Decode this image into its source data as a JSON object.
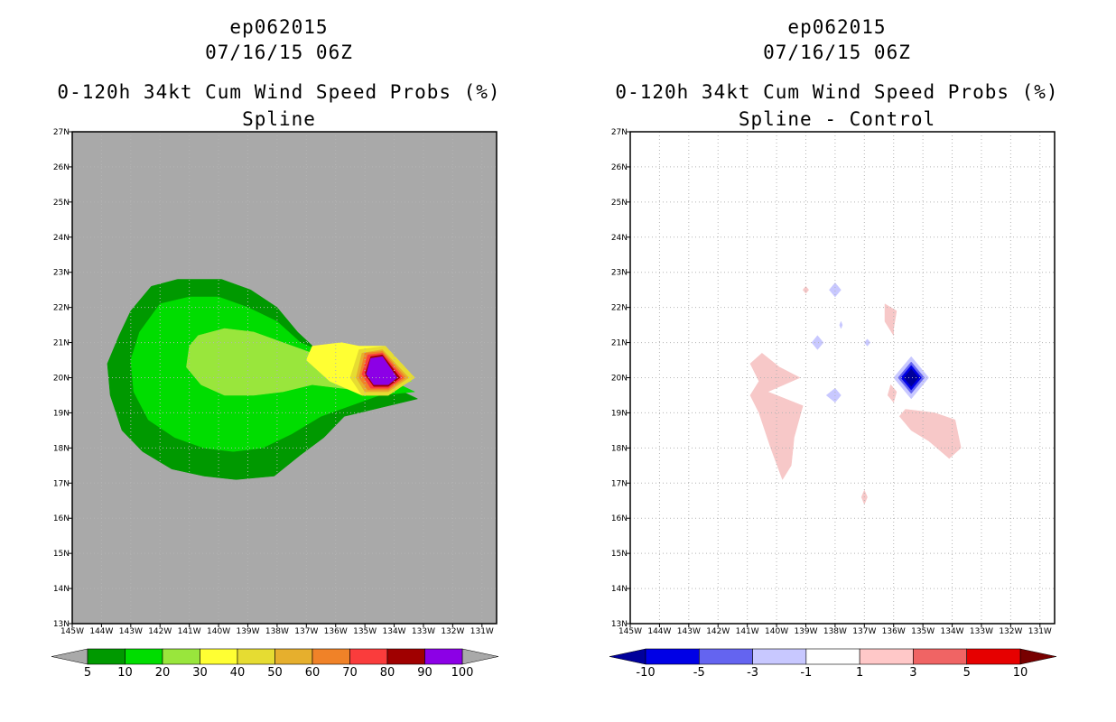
{
  "chart_data": [
    {
      "type": "heatmap",
      "storm_id": "ep062015",
      "datetime": "07/16/15 06Z",
      "title": "0-120h 34kt Cum Wind Speed Probs (%)",
      "subtitle": "Spline",
      "xlim_lon": [
        -145,
        -130.5
      ],
      "ylim_lat": [
        13,
        27
      ],
      "x_tick_labels": [
        "145W",
        "144W",
        "143W",
        "142W",
        "141W",
        "140W",
        "139W",
        "138W",
        "137W",
        "136W",
        "135W",
        "134W",
        "133W",
        "132W",
        "131W"
      ],
      "y_tick_labels": [
        "13N",
        "14N",
        "15N",
        "16N",
        "17N",
        "18N",
        "19N",
        "20N",
        "21N",
        "22N",
        "23N",
        "24N",
        "25N",
        "26N",
        "27N"
      ],
      "grid": true,
      "background_color": "#a9a9a9",
      "colorbar": {
        "labels": [
          "5",
          "10",
          "20",
          "30",
          "40",
          "50",
          "60",
          "70",
          "80",
          "90",
          "100"
        ],
        "colors": [
          "#009900",
          "#00dd00",
          "#99e63c",
          "#ffff33",
          "#e6dc32",
          "#e6af2d",
          "#f08228",
          "#fa3c3c",
          "#a00000",
          "#8c00e6"
        ],
        "end_colors": [
          "#a9a9a9",
          "#a9a9a9"
        ]
      },
      "contours": [
        {
          "level": 5,
          "color": "#009900",
          "polygon": [
            [
              -142.3,
              22.6
            ],
            [
              -141.4,
              22.8
            ],
            [
              -139.9,
              22.8
            ],
            [
              -138.9,
              22.5
            ],
            [
              -138.0,
              22.0
            ],
            [
              -137.3,
              21.3
            ],
            [
              -136.4,
              20.6
            ],
            [
              -135.2,
              20.2
            ],
            [
              -133.2,
              19.4
            ],
            [
              -135.7,
              18.9
            ],
            [
              -136.4,
              18.3
            ],
            [
              -137.2,
              17.8
            ],
            [
              -138.1,
              17.2
            ],
            [
              -139.4,
              17.1
            ],
            [
              -140.5,
              17.2
            ],
            [
              -141.6,
              17.4
            ],
            [
              -142.6,
              17.9
            ],
            [
              -143.3,
              18.5
            ],
            [
              -143.7,
              19.5
            ],
            [
              -143.8,
              20.4
            ],
            [
              -143.4,
              21.2
            ],
            [
              -143.0,
              21.9
            ]
          ]
        },
        {
          "level": 10,
          "color": "#00dd00",
          "polygon": [
            [
              -142.0,
              22.1
            ],
            [
              -141.0,
              22.3
            ],
            [
              -140.0,
              22.3
            ],
            [
              -139.0,
              22.0
            ],
            [
              -138.0,
              21.6
            ],
            [
              -137.2,
              21.0
            ],
            [
              -135.8,
              20.5
            ],
            [
              -134.8,
              20.2
            ],
            [
              -133.3,
              19.6
            ],
            [
              -134.5,
              19.5
            ],
            [
              -135.5,
              19.2
            ],
            [
              -136.5,
              18.9
            ],
            [
              -137.5,
              18.4
            ],
            [
              -138.5,
              18.0
            ],
            [
              -139.5,
              17.9
            ],
            [
              -140.5,
              18.0
            ],
            [
              -141.5,
              18.3
            ],
            [
              -142.4,
              18.8
            ],
            [
              -142.9,
              19.6
            ],
            [
              -143.0,
              20.5
            ],
            [
              -142.7,
              21.3
            ]
          ]
        },
        {
          "level": 20,
          "color": "#99e63c",
          "polygon": [
            [
              -140.7,
              21.2
            ],
            [
              -139.8,
              21.4
            ],
            [
              -138.8,
              21.3
            ],
            [
              -137.8,
              21.0
            ],
            [
              -136.8,
              20.7
            ],
            [
              -135.7,
              20.4
            ],
            [
              -134.7,
              20.2
            ],
            [
              -133.4,
              19.9
            ],
            [
              -134.8,
              19.6
            ],
            [
              -135.8,
              19.7
            ],
            [
              -136.8,
              19.8
            ],
            [
              -137.8,
              19.6
            ],
            [
              -138.8,
              19.5
            ],
            [
              -139.8,
              19.5
            ],
            [
              -140.6,
              19.8
            ],
            [
              -141.1,
              20.3
            ],
            [
              -141.0,
              20.9
            ]
          ]
        },
        {
          "level": 30,
          "color": "#ffff33",
          "polygon": [
            [
              -136.8,
              20.9
            ],
            [
              -135.8,
              21.0
            ],
            [
              -135.2,
              20.9
            ],
            [
              -134.3,
              20.9
            ],
            [
              -133.3,
              20.0
            ],
            [
              -134.2,
              19.5
            ],
            [
              -135.1,
              19.5
            ],
            [
              -136.2,
              19.9
            ],
            [
              -137.0,
              20.5
            ]
          ]
        },
        {
          "level": 40,
          "color": "#e6dc32",
          "polygon": [
            [
              -135.2,
              20.8
            ],
            [
              -134.3,
              20.9
            ],
            [
              -133.3,
              20.0
            ],
            [
              -134.2,
              19.5
            ],
            [
              -135.1,
              19.5
            ],
            [
              -135.5,
              20.0
            ]
          ]
        },
        {
          "level": 50,
          "color": "#e6af2d",
          "polygon": [
            [
              -135.1,
              20.7
            ],
            [
              -134.4,
              20.8
            ],
            [
              -133.5,
              20.0
            ],
            [
              -134.2,
              19.6
            ],
            [
              -135.0,
              19.6
            ],
            [
              -135.3,
              20.0
            ]
          ]
        },
        {
          "level": 60,
          "color": "#f08228",
          "polygon": [
            [
              -135.0,
              20.7
            ],
            [
              -134.4,
              20.75
            ],
            [
              -133.6,
              20.0
            ],
            [
              -134.2,
              19.65
            ],
            [
              -134.9,
              19.65
            ],
            [
              -135.2,
              20.0
            ]
          ]
        },
        {
          "level": 70,
          "color": "#fa3c3c",
          "polygon": [
            [
              -134.9,
              20.65
            ],
            [
              -134.4,
              20.7
            ],
            [
              -133.7,
              20.0
            ],
            [
              -134.2,
              19.7
            ],
            [
              -134.8,
              19.7
            ],
            [
              -135.1,
              20.1
            ]
          ]
        },
        {
          "level": 80,
          "color": "#a00000",
          "polygon": [
            [
              -134.8,
              20.6
            ],
            [
              -134.4,
              20.65
            ],
            [
              -133.8,
              20.0
            ],
            [
              -134.2,
              19.75
            ],
            [
              -134.7,
              19.75
            ],
            [
              -135.0,
              20.1
            ]
          ]
        },
        {
          "level": 90,
          "color": "#8c00e6",
          "polygon": [
            [
              -134.8,
              20.55
            ],
            [
              -134.4,
              20.6
            ],
            [
              -133.9,
              20.0
            ],
            [
              -134.2,
              19.8
            ],
            [
              -134.7,
              19.8
            ],
            [
              -134.95,
              20.1
            ]
          ]
        }
      ]
    },
    {
      "type": "heatmap",
      "storm_id": "ep062015",
      "datetime": "07/16/15 06Z",
      "title": "0-120h 34kt Cum Wind Speed Probs (%)",
      "subtitle": "Spline - Control",
      "xlim_lon": [
        -145,
        -130.5
      ],
      "ylim_lat": [
        13,
        27
      ],
      "x_tick_labels": [
        "145W",
        "144W",
        "143W",
        "142W",
        "141W",
        "140W",
        "139W",
        "138W",
        "137W",
        "136W",
        "135W",
        "134W",
        "133W",
        "132W",
        "131W"
      ],
      "y_tick_labels": [
        "13N",
        "14N",
        "15N",
        "16N",
        "17N",
        "18N",
        "19N",
        "20N",
        "21N",
        "22N",
        "23N",
        "24N",
        "25N",
        "26N",
        "27N"
      ],
      "grid": true,
      "background_color": "#ffffff",
      "colorbar": {
        "labels": [
          "-10",
          "-5",
          "-3",
          "-1",
          "1",
          "3",
          "5",
          "10"
        ],
        "colors": [
          "#0000e6",
          "#6464f0",
          "#c8c8ff",
          "#ffffff",
          "#ffc8c8",
          "#f06464",
          "#e60000"
        ],
        "end_colors": [
          "#00009b",
          "#780000"
        ]
      },
      "contours": [
        {
          "level": 1,
          "color": "#f7c8c8",
          "polygon": [
            [
              -140.5,
              20.7
            ],
            [
              -139.9,
              20.3
            ],
            [
              -139.2,
              20.0
            ],
            [
              -140.3,
              19.6
            ],
            [
              -139.1,
              19.2
            ],
            [
              -139.4,
              18.3
            ],
            [
              -139.5,
              17.5
            ],
            [
              -139.8,
              17.1
            ],
            [
              -140.2,
              18.0
            ],
            [
              -140.6,
              19.0
            ],
            [
              -140.9,
              19.5
            ],
            [
              -140.6,
              19.9
            ],
            [
              -140.9,
              20.4
            ]
          ]
        },
        {
          "level": 1,
          "color": "#f7c8c8",
          "polygon": [
            [
              -135.6,
              19.1
            ],
            [
              -134.6,
              19.0
            ],
            [
              -133.9,
              18.8
            ],
            [
              -133.7,
              18.0
            ],
            [
              -134.1,
              17.7
            ],
            [
              -134.8,
              18.2
            ],
            [
              -135.4,
              18.5
            ],
            [
              -135.8,
              18.9
            ]
          ]
        },
        {
          "level": 1,
          "color": "#f7c8c8",
          "polygon": [
            [
              -136.3,
              22.1
            ],
            [
              -135.9,
              21.9
            ],
            [
              -136.0,
              21.4
            ],
            [
              -136.0,
              21.2
            ],
            [
              -136.3,
              21.6
            ]
          ]
        },
        {
          "level": 1,
          "color": "#f7c8c8",
          "polygon": [
            [
              -136.1,
              19.8
            ],
            [
              -135.9,
              19.6
            ],
            [
              -136.0,
              19.3
            ],
            [
              -136.2,
              19.5
            ]
          ]
        },
        {
          "level": 1,
          "color": "#f7c8c8",
          "polygon": [
            [
              -137.0,
              16.8
            ],
            [
              -136.9,
              16.6
            ],
            [
              -137.0,
              16.4
            ],
            [
              -137.1,
              16.6
            ]
          ]
        },
        {
          "level": 1,
          "color": "#f7c8c8",
          "polygon": [
            [
              -139.0,
              22.6
            ],
            [
              -138.9,
              22.5
            ],
            [
              -139.0,
              22.4
            ],
            [
              -139.1,
              22.5
            ]
          ]
        },
        {
          "level": -1,
          "color": "#c8c8ff",
          "polygon": [
            [
              -138.0,
              22.7
            ],
            [
              -137.8,
              22.5
            ],
            [
              -138.0,
              22.3
            ],
            [
              -138.2,
              22.5
            ]
          ]
        },
        {
          "level": -1,
          "color": "#c8c8ff",
          "polygon": [
            [
              -138.6,
              21.2
            ],
            [
              -138.4,
              21.0
            ],
            [
              -138.6,
              20.8
            ],
            [
              -138.8,
              21.0
            ]
          ]
        },
        {
          "level": -1,
          "color": "#c8c8ff",
          "polygon": [
            [
              -138.0,
              19.7
            ],
            [
              -137.8,
              19.5
            ],
            [
              -138.0,
              19.3
            ],
            [
              -138.3,
              19.5
            ]
          ]
        },
        {
          "level": -1,
          "color": "#c8c8ff",
          "polygon": [
            [
              -137.8,
              21.6
            ],
            [
              -137.75,
              21.5
            ],
            [
              -137.8,
              21.4
            ],
            [
              -137.85,
              21.5
            ]
          ]
        },
        {
          "level": -1,
          "color": "#c8c8ff",
          "polygon": [
            [
              -136.9,
              21.1
            ],
            [
              -136.8,
              21.0
            ],
            [
              -136.9,
              20.9
            ],
            [
              -137.0,
              21.0
            ]
          ]
        },
        {
          "level": -1,
          "color": "#c8c8ff",
          "polygon": [
            [
              -135.4,
              20.6
            ],
            [
              -134.8,
              20.0
            ],
            [
              -135.4,
              19.4
            ],
            [
              -136.0,
              20.0
            ]
          ]
        },
        {
          "level": -3,
          "color": "#6464f0",
          "polygon": [
            [
              -135.4,
              20.45
            ],
            [
              -134.95,
              20.0
            ],
            [
              -135.4,
              19.55
            ],
            [
              -135.85,
              20.0
            ]
          ]
        },
        {
          "level": -5,
          "color": "#0000e6",
          "polygon": [
            [
              -135.4,
              20.35
            ],
            [
              -135.05,
              20.0
            ],
            [
              -135.4,
              19.65
            ],
            [
              -135.75,
              20.0
            ]
          ]
        },
        {
          "level": -10,
          "color": "#00009b",
          "polygon": [
            [
              -135.4,
              20.25
            ],
            [
              -135.15,
              20.0
            ],
            [
              -135.4,
              19.75
            ],
            [
              -135.65,
              20.0
            ]
          ]
        }
      ]
    }
  ]
}
